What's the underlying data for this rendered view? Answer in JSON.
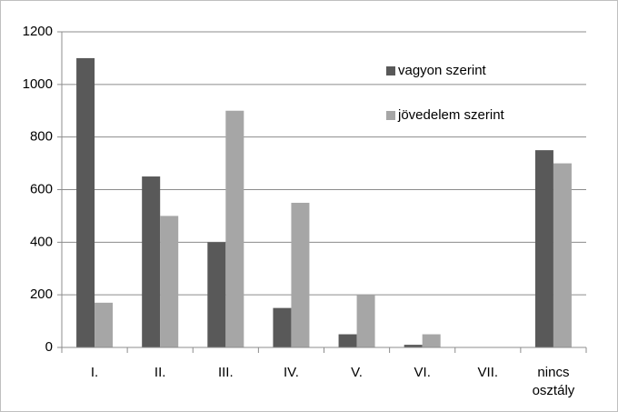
{
  "chart_data": {
    "type": "bar",
    "categories": [
      "I.",
      "II.",
      "III.",
      "IV.",
      "V.",
      "VI.",
      "VII.",
      "nincs osztály"
    ],
    "series": [
      {
        "name": "vagyon szerint",
        "color": "#595959",
        "values": [
          1100,
          650,
          400,
          150,
          50,
          10,
          0,
          750
        ]
      },
      {
        "name": "jövedelem szerint",
        "color": "#a6a6a6",
        "values": [
          170,
          500,
          900,
          550,
          200,
          50,
          0,
          700
        ]
      }
    ],
    "ylim": [
      0,
      1200
    ],
    "yticks": [
      0,
      200,
      400,
      600,
      800,
      1000,
      1200
    ],
    "grid": true
  }
}
